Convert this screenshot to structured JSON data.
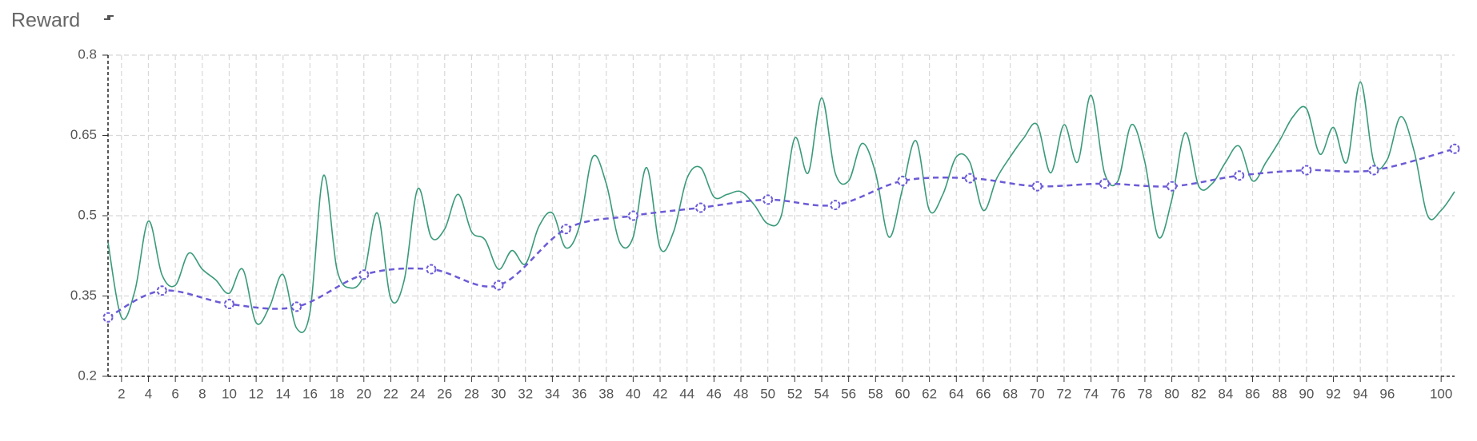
{
  "chart_data": {
    "type": "line",
    "title": "Reward",
    "x": [
      1,
      2,
      3,
      4,
      5,
      6,
      7,
      8,
      9,
      10,
      11,
      12,
      13,
      14,
      15,
      16,
      17,
      18,
      19,
      20,
      21,
      22,
      23,
      24,
      25,
      26,
      27,
      28,
      29,
      30,
      31,
      32,
      33,
      34,
      35,
      36,
      37,
      38,
      39,
      40,
      41,
      42,
      43,
      44,
      45,
      46,
      47,
      48,
      49,
      50,
      51,
      52,
      53,
      54,
      55,
      56,
      57,
      58,
      59,
      60,
      61,
      62,
      63,
      64,
      65,
      66,
      67,
      68,
      69,
      70,
      71,
      72,
      73,
      74,
      75,
      76,
      77,
      78,
      79,
      80,
      81,
      82,
      83,
      84,
      85,
      86,
      87,
      88,
      89,
      90,
      91,
      92,
      93,
      94,
      95,
      96,
      97,
      98,
      99,
      100,
      101
    ],
    "series": [
      {
        "color": "#3a9a7a",
        "smooth": true,
        "markers": false,
        "dashed": false,
        "values": [
          0.45,
          0.31,
          0.36,
          0.49,
          0.39,
          0.37,
          0.43,
          0.4,
          0.38,
          0.355,
          0.4,
          0.3,
          0.33,
          0.39,
          0.29,
          0.32,
          0.575,
          0.4,
          0.365,
          0.39,
          0.505,
          0.345,
          0.38,
          0.55,
          0.46,
          0.475,
          0.54,
          0.47,
          0.455,
          0.4,
          0.435,
          0.41,
          0.48,
          0.505,
          0.44,
          0.48,
          0.61,
          0.56,
          0.45,
          0.46,
          0.59,
          0.44,
          0.47,
          0.57,
          0.59,
          0.535,
          0.54,
          0.545,
          0.52,
          0.485,
          0.5,
          0.645,
          0.58,
          0.72,
          0.58,
          0.565,
          0.635,
          0.58,
          0.46,
          0.55,
          0.64,
          0.51,
          0.54,
          0.61,
          0.6,
          0.51,
          0.57,
          0.61,
          0.645,
          0.67,
          0.58,
          0.67,
          0.6,
          0.725,
          0.58,
          0.565,
          0.67,
          0.6,
          0.46,
          0.53,
          0.655,
          0.555,
          0.56,
          0.6,
          0.63,
          0.565,
          0.6,
          0.64,
          0.685,
          0.7,
          0.615,
          0.665,
          0.6,
          0.75,
          0.6,
          0.605,
          0.685,
          0.62,
          0.5,
          0.51,
          0.545
        ]
      },
      {
        "color": "#6b5bd6",
        "smooth": true,
        "markers": true,
        "dashed": true,
        "x": [
          1,
          5,
          10,
          15,
          20,
          25,
          30,
          35,
          40,
          45,
          50,
          55,
          60,
          65,
          70,
          75,
          80,
          85,
          90,
          95,
          101
        ],
        "values": [
          0.31,
          0.36,
          0.335,
          0.33,
          0.39,
          0.4,
          0.37,
          0.475,
          0.5,
          0.515,
          0.53,
          0.52,
          0.565,
          0.57,
          0.555,
          0.56,
          0.555,
          0.575,
          0.585,
          0.585,
          0.625
        ]
      }
    ],
    "xlim": [
      1,
      101
    ],
    "xticks": [
      2,
      4,
      6,
      8,
      10,
      12,
      14,
      16,
      18,
      20,
      22,
      24,
      26,
      28,
      30,
      32,
      34,
      36,
      38,
      40,
      42,
      44,
      46,
      48,
      50,
      52,
      54,
      56,
      58,
      60,
      62,
      64,
      66,
      68,
      70,
      72,
      74,
      76,
      78,
      80,
      82,
      84,
      86,
      88,
      90,
      92,
      94,
      96,
      100
    ],
    "ylim": [
      0.2,
      0.8
    ],
    "yticks": [
      0.2,
      0.35,
      0.5,
      0.65,
      0.8
    ],
    "grid": true
  }
}
